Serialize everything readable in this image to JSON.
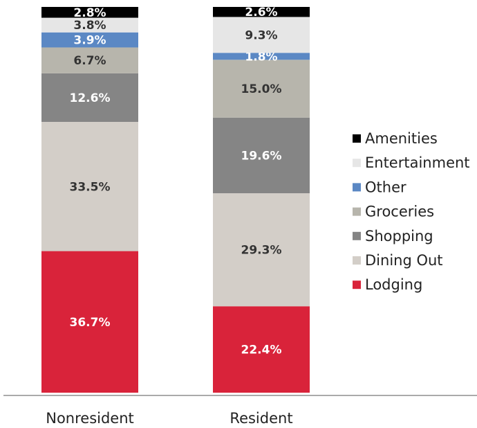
{
  "chart_data": {
    "type": "stacked_bar",
    "categories": [
      "Nonresident",
      "Resident"
    ],
    "series": [
      {
        "name": "Lodging",
        "color": "#d9233a",
        "label_color": "#ffffff",
        "values": [
          36.7,
          22.4
        ],
        "value_labels": [
          "36.7%",
          "22.4%"
        ]
      },
      {
        "name": "Dining Out",
        "color": "#d3cec8",
        "label_color": "#333333",
        "values": [
          33.5,
          29.3
        ],
        "value_labels": [
          "33.5%",
          "29.3%"
        ]
      },
      {
        "name": "Shopping",
        "color": "#858585",
        "label_color": "#ffffff",
        "values": [
          12.6,
          19.6
        ],
        "value_labels": [
          "12.6%",
          "19.6%"
        ]
      },
      {
        "name": "Groceries",
        "color": "#b7b5ac",
        "label_color": "#333333",
        "values": [
          6.7,
          15.0
        ],
        "value_labels": [
          "6.7%",
          "15.0%"
        ]
      },
      {
        "name": "Other",
        "color": "#5b88c4",
        "label_color": "#ffffff",
        "values": [
          3.9,
          1.8
        ],
        "value_labels": [
          "3.9%",
          "1.8%"
        ]
      },
      {
        "name": "Entertainment",
        "color": "#e6e6e6",
        "label_color": "#333333",
        "values": [
          3.8,
          9.3
        ],
        "value_labels": [
          "3.8%",
          "9.3%"
        ]
      },
      {
        "name": "Amenities",
        "color": "#000000",
        "label_color": "#ffffff",
        "values": [
          2.8,
          2.6
        ],
        "value_labels": [
          "2.8%",
          "2.6%"
        ]
      }
    ],
    "legend": "right"
  }
}
